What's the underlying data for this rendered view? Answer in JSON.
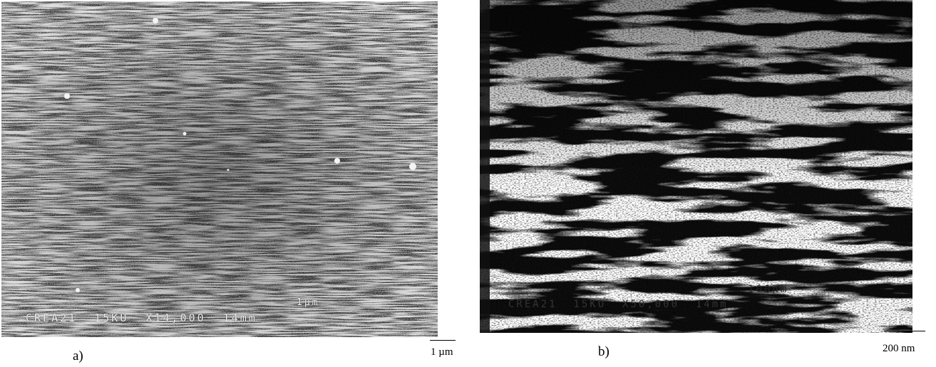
{
  "panel_a": {
    "label": "a)",
    "scale_label": "1 µm",
    "imprint_line1": "1µm",
    "imprint_line2": "CREA21  15KU  X14,000  14mm"
  },
  "panel_b": {
    "label": "b)",
    "scale_label": "200 nm",
    "imprint_line1": "100nm",
    "imprint_line2": "CREA21  15KU  X50,000  14mm"
  },
  "colors": {
    "background": "#ffffff",
    "panel_a_base": "#3a3a3a",
    "panel_b_base": "#ffffff"
  }
}
